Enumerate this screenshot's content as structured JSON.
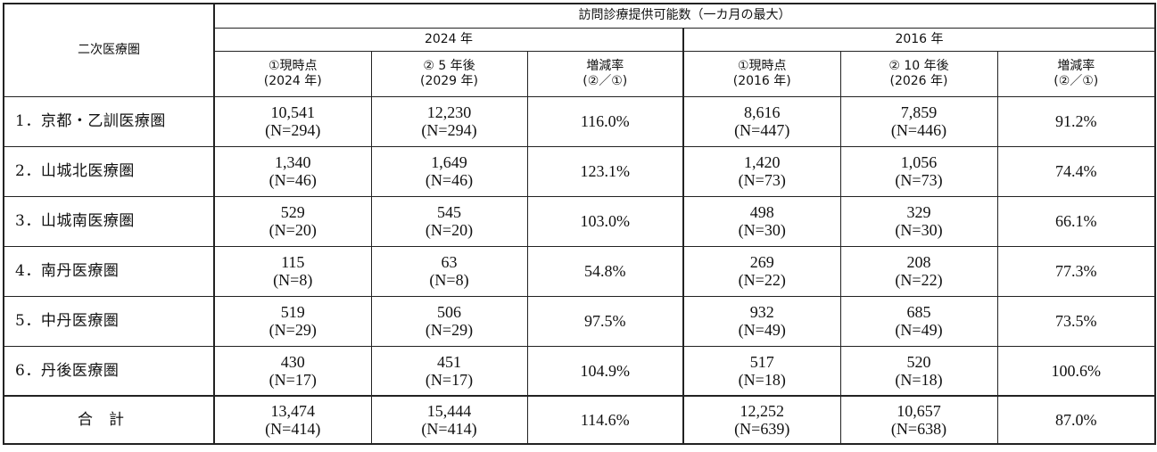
{
  "header": {
    "area_col": "二次医療圏",
    "main_title": "訪問診療提供可能数（一カ月の最大）",
    "groups": [
      {
        "year": "2024 年",
        "cols": [
          {
            "l1": "①現時点",
            "l2": "(2024 年)"
          },
          {
            "l1": "② 5 年後",
            "l2": "(2029 年)"
          },
          {
            "l1": "増減率",
            "l2": "(②／①)"
          }
        ]
      },
      {
        "year": "2016 年",
        "cols": [
          {
            "l1": "①現時点",
            "l2": "(2016 年)"
          },
          {
            "l1": "② 10 年後",
            "l2": "(2026 年)"
          },
          {
            "l1": "増減率",
            "l2": "(②／①)"
          }
        ]
      }
    ]
  },
  "rows": [
    {
      "area": "1．京都・乙訓医療圏",
      "a": {
        "v": "10,541",
        "n": "(N=294)"
      },
      "b": {
        "v": "12,230",
        "n": "(N=294)"
      },
      "r1": "116.0%",
      "c": {
        "v": "8,616",
        "n": "(N=447)"
      },
      "d": {
        "v": "7,859",
        "n": "(N=446)"
      },
      "r2": "91.2%"
    },
    {
      "area": "2．山城北医療圏",
      "a": {
        "v": "1,340",
        "n": "(N=46)"
      },
      "b": {
        "v": "1,649",
        "n": "(N=46)"
      },
      "r1": "123.1%",
      "c": {
        "v": "1,420",
        "n": "(N=73)"
      },
      "d": {
        "v": "1,056",
        "n": "(N=73)"
      },
      "r2": "74.4%"
    },
    {
      "area": "3．山城南医療圏",
      "a": {
        "v": "529",
        "n": "(N=20)"
      },
      "b": {
        "v": "545",
        "n": "(N=20)"
      },
      "r1": "103.0%",
      "c": {
        "v": "498",
        "n": "(N=30)"
      },
      "d": {
        "v": "329",
        "n": "(N=30)"
      },
      "r2": "66.1%"
    },
    {
      "area": "4．南丹医療圏",
      "a": {
        "v": "115",
        "n": "(N=8)"
      },
      "b": {
        "v": "63",
        "n": "(N=8)"
      },
      "r1": "54.8%",
      "c": {
        "v": "269",
        "n": "(N=22)"
      },
      "d": {
        "v": "208",
        "n": "(N=22)"
      },
      "r2": "77.3%"
    },
    {
      "area": "5．中丹医療圏",
      "a": {
        "v": "519",
        "n": "(N=29)"
      },
      "b": {
        "v": "506",
        "n": "(N=29)"
      },
      "r1": "97.5%",
      "c": {
        "v": "932",
        "n": "(N=49)"
      },
      "d": {
        "v": "685",
        "n": "(N=49)"
      },
      "r2": "73.5%"
    },
    {
      "area": "6．丹後医療圏",
      "a": {
        "v": "430",
        "n": "(N=17)"
      },
      "b": {
        "v": "451",
        "n": "(N=17)"
      },
      "r1": "104.9%",
      "c": {
        "v": "517",
        "n": "(N=18)"
      },
      "d": {
        "v": "520",
        "n": "(N=18)"
      },
      "r2": "100.6%"
    },
    {
      "area": "合計",
      "a": {
        "v": "13,474",
        "n": "(N=414)"
      },
      "b": {
        "v": "15,444",
        "n": "(N=414)"
      },
      "r1": "114.6%",
      "c": {
        "v": "12,252",
        "n": "(N=639)"
      },
      "d": {
        "v": "10,657",
        "n": "(N=638)"
      },
      "r2": "87.0%"
    }
  ]
}
